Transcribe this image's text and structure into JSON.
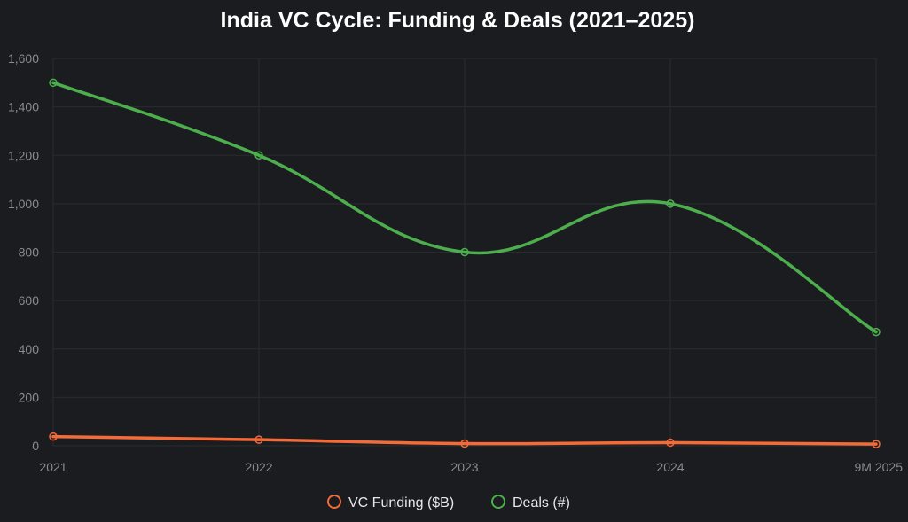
{
  "chart_data": {
    "type": "line",
    "title": "India VC Cycle: Funding & Deals (2021–2025)",
    "categories": [
      "2021",
      "2022",
      "2023",
      "2024",
      "9M 2025"
    ],
    "xlabel": "",
    "ylabel": "",
    "ylim": [
      0,
      1600
    ],
    "yticks": [
      0,
      200,
      400,
      600,
      800,
      1000,
      1200,
      1400,
      1600
    ],
    "ytick_labels": [
      "0",
      "200",
      "400",
      "600",
      "800",
      "1,000",
      "1,200",
      "1,400",
      "1,600"
    ],
    "grid": true,
    "legend_position": "bottom",
    "series": [
      {
        "name": "VC Funding ($B)",
        "values": [
          38,
          25,
          9,
          13,
          7
        ],
        "color": "#f26b38"
      },
      {
        "name": "Deals (#)",
        "values": [
          1500,
          1200,
          800,
          1000,
          470
        ],
        "color": "#4cae4c"
      }
    ]
  }
}
